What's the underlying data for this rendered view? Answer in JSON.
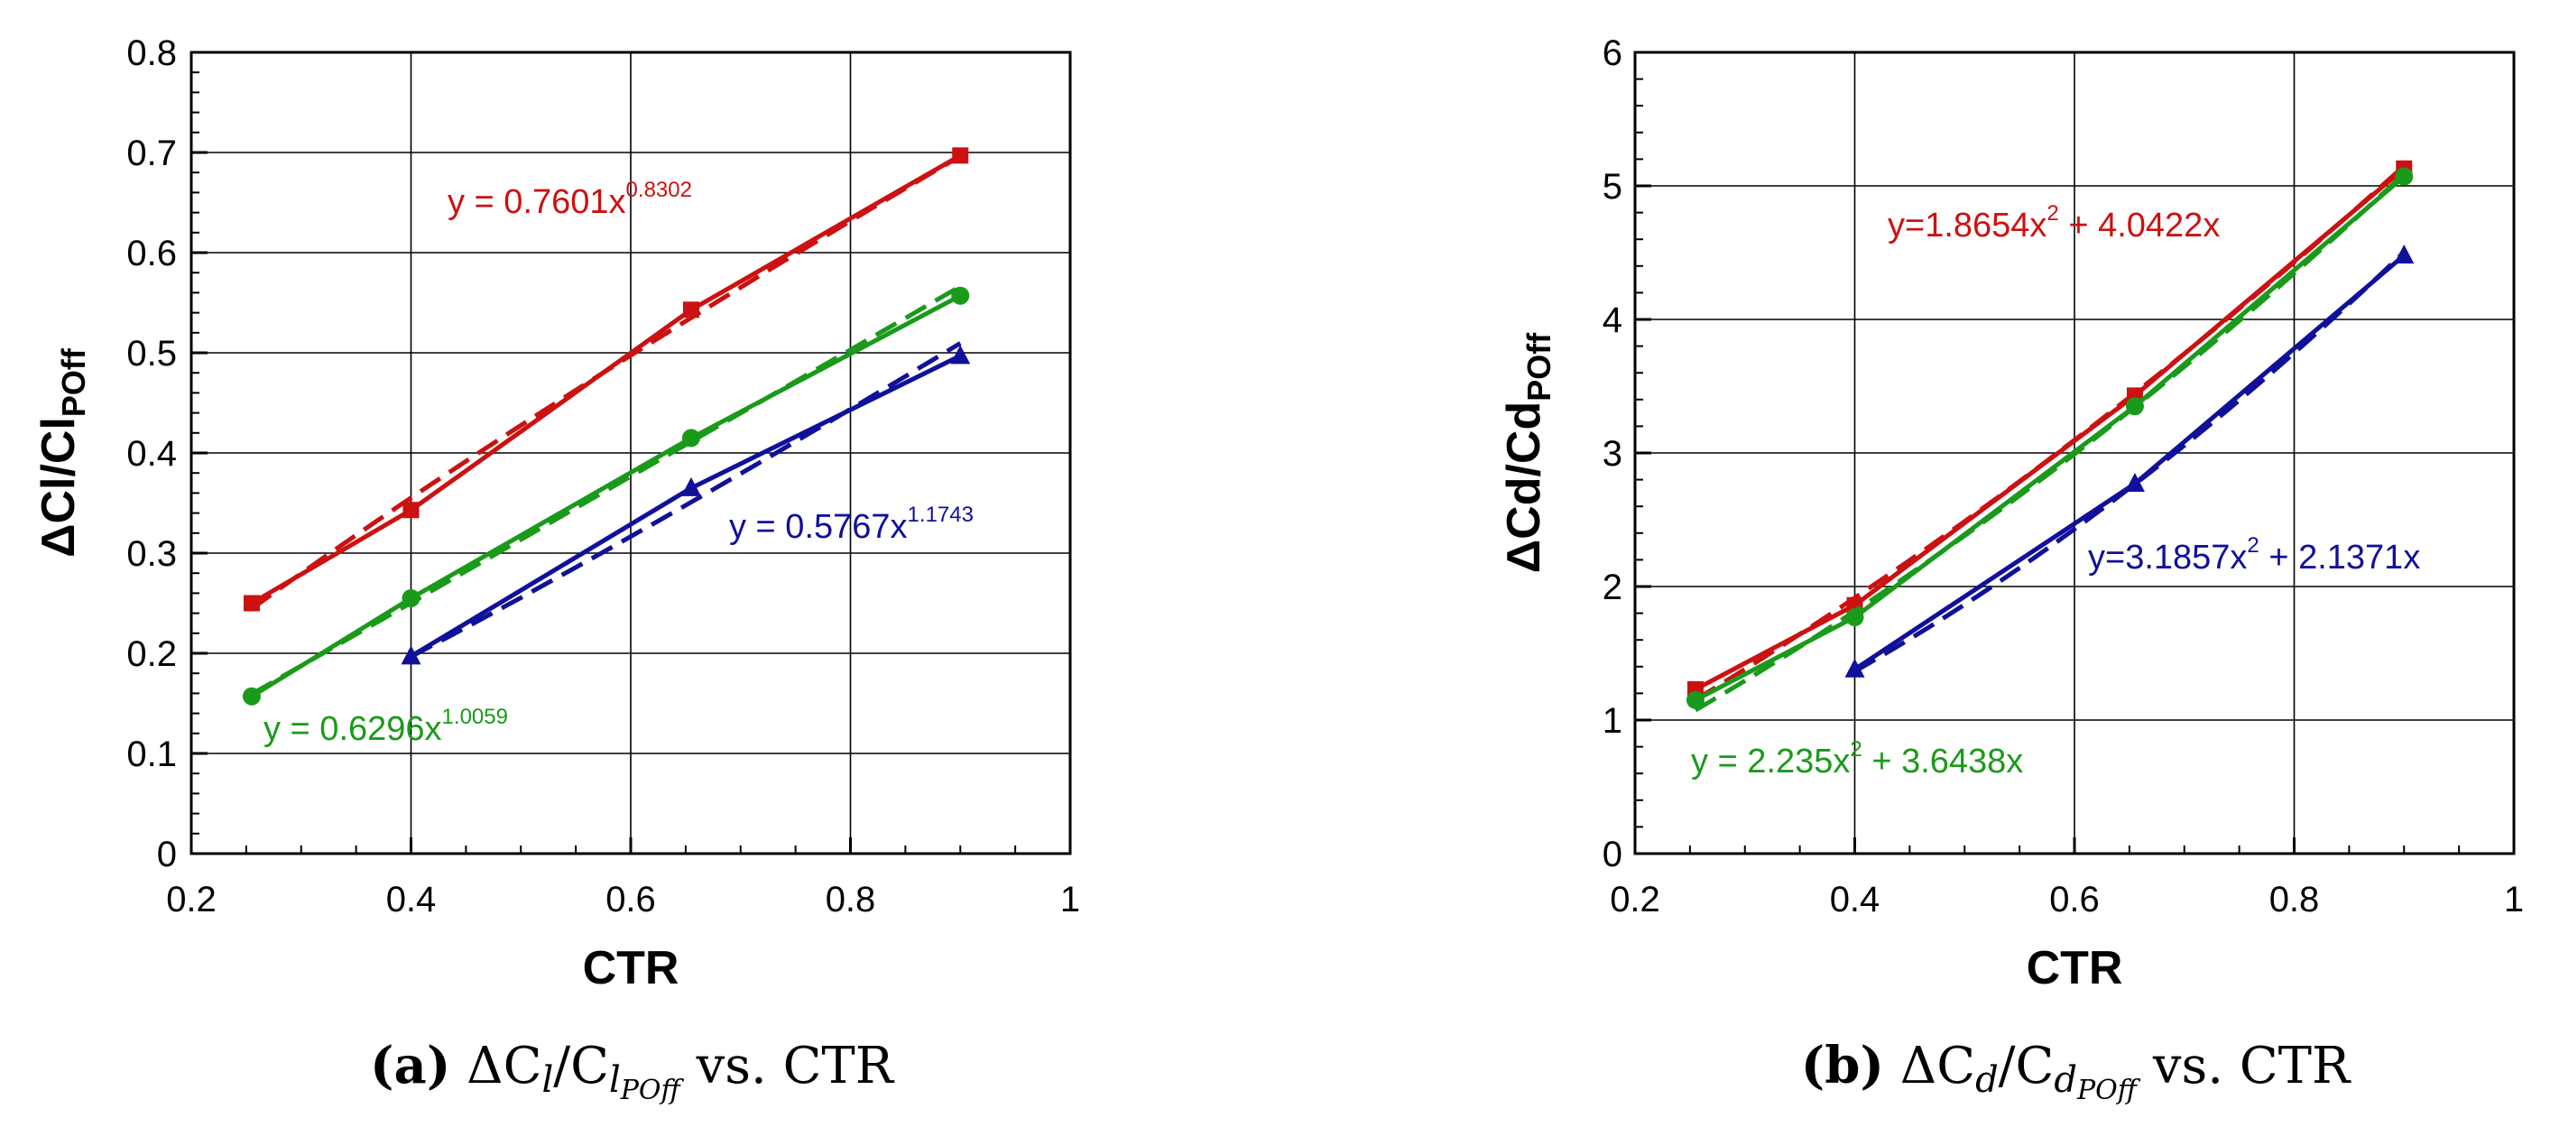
{
  "chart_data": [
    {
      "type": "line",
      "xlabel": "CTR",
      "ylabel": "ΔCl/Cl",
      "ylabel_sub": "POff",
      "xlim": [
        0.2,
        1.0
      ],
      "ylim": [
        0,
        0.8
      ],
      "xticks": [
        "0.2",
        "0.4",
        "0.6",
        "0.8",
        "1"
      ],
      "yticks": [
        "0",
        "0.1",
        "0.2",
        "0.3",
        "0.4",
        "0.5",
        "0.6",
        "0.7",
        "0.8"
      ],
      "series": [
        {
          "name": "red",
          "color": "#cc1111",
          "marker": "square",
          "x": [
            0.255,
            0.4,
            0.655,
            0.9
          ],
          "y": [
            0.25,
            0.343,
            0.543,
            0.697
          ],
          "fit": {
            "kind": "power",
            "a": 0.7601,
            "b": 0.8302
          }
        },
        {
          "name": "green",
          "color": "#1a9a1a",
          "marker": "circle",
          "x": [
            0.255,
            0.4,
            0.655,
            0.9
          ],
          "y": [
            0.157,
            0.255,
            0.415,
            0.557
          ],
          "fit": {
            "kind": "power",
            "a": 0.6296,
            "b": 1.0059
          }
        },
        {
          "name": "blue",
          "color": "#10109a",
          "marker": "triangle",
          "x": [
            0.4,
            0.655,
            0.9
          ],
          "y": [
            0.197,
            0.365,
            0.497
          ],
          "fit": {
            "kind": "power",
            "a": 0.5767,
            "b": 1.1743
          }
        }
      ],
      "annotations": [
        {
          "color": "#cc1111",
          "base": "y = 0.7601x",
          "exp": "0.8302"
        },
        {
          "color": "#1a9a1a",
          "base": "y = 0.6296x",
          "exp": "1.0059"
        },
        {
          "color": "#10109a",
          "base": "y = 0.5767x",
          "exp": "1.1743"
        }
      ],
      "caption": {
        "label": "(a)",
        "prefix": "ΔC",
        "sub1": "l",
        "mid": "/C",
        "sub2": "l",
        "sub3": "POff",
        "suffix": " vs. CTR"
      }
    },
    {
      "type": "line",
      "xlabel": "CTR",
      "ylabel": "ΔCd/Cd",
      "ylabel_sub": "POff",
      "xlim": [
        0.2,
        1.0
      ],
      "ylim": [
        0,
        6
      ],
      "xticks": [
        "0.2",
        "0.4",
        "0.6",
        "0.8",
        "1"
      ],
      "yticks": [
        "0",
        "1",
        "2",
        "3",
        "4",
        "5",
        "6"
      ],
      "series": [
        {
          "name": "red",
          "color": "#cc1111",
          "marker": "square",
          "x": [
            0.255,
            0.4,
            0.655,
            0.9
          ],
          "y": [
            1.23,
            1.86,
            3.43,
            5.13
          ],
          "fit": {
            "kind": "poly",
            "a": 1.8654,
            "b": 4.0422
          }
        },
        {
          "name": "green",
          "color": "#1a9a1a",
          "marker": "circle",
          "x": [
            0.255,
            0.4,
            0.655,
            0.9
          ],
          "y": [
            1.15,
            1.77,
            3.35,
            5.07
          ],
          "fit": {
            "kind": "poly",
            "a": 2.235,
            "b": 3.6438
          }
        },
        {
          "name": "blue",
          "color": "#10109a",
          "marker": "triangle",
          "x": [
            0.4,
            0.655,
            0.9
          ],
          "y": [
            1.38,
            2.77,
            4.48
          ],
          "fit": {
            "kind": "poly",
            "a": 3.1857,
            "b": 2.1371
          }
        }
      ],
      "annotations": [
        {
          "color": "#cc1111",
          "base": "y=1.8654x",
          "exp": "2",
          "tail": " + 4.0422x"
        },
        {
          "color": "#10109a",
          "base": "y=3.1857x",
          "exp": "2",
          "tail": " + 2.1371x"
        },
        {
          "color": "#1a9a1a",
          "base": "y = 2.235x",
          "exp": "2",
          "tail": " + 3.6438x"
        }
      ],
      "caption": {
        "label": "(b)",
        "prefix": "ΔC",
        "sub1": "d",
        "mid": "/C",
        "sub2": "d",
        "sub3": "POff",
        "suffix": " vs. CTR"
      }
    }
  ]
}
